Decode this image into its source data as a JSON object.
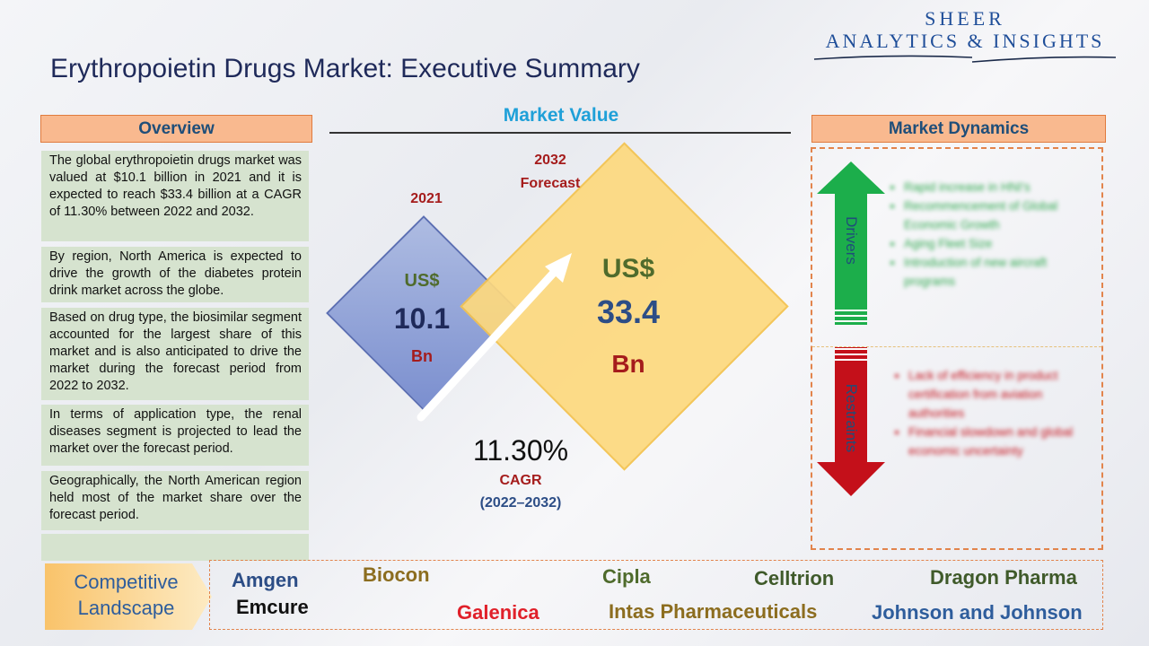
{
  "logo": {
    "line1": "SHEER",
    "line2": "ANALYTICS & INSIGHTS"
  },
  "title": "Erythropoietin Drugs Market: Executive Summary",
  "overview": {
    "header": "Overview",
    "items": [
      "The global erythropoietin drugs market was valued at $10.1 billion in 2021 and it is expected to reach $33.4 billion at a CAGR of 11.30% between 2022 and 2032.",
      "By region, North America is expected to drive the growth of the diabetes protein drink market across the globe.",
      "Based on drug type, the biosimilar segment accounted for the largest share of this market and is also anticipated to drive the market during the forecast period from 2022 to 2032.",
      "In terms of application type, the renal diseases segment is projected to lead the market over the forecast period.",
      "Geographically, the North American region held most of the market share over the forecast period.",
      ""
    ]
  },
  "market_value": {
    "header": "Market Value",
    "year_2021": "2021",
    "value_2021": {
      "currency": "US$",
      "amount": "10.1",
      "unit": "Bn"
    },
    "year_2032": "2032",
    "forecast_label": "Forecast",
    "value_2032": {
      "currency": "US$",
      "amount": "33.4",
      "unit": "Bn"
    },
    "cagr_value": "11.30%",
    "cagr_label": "CAGR",
    "cagr_period": "(2022–2032)"
  },
  "market_dynamics": {
    "header": "Market Dynamics",
    "drivers_label": "Drivers",
    "drivers": [
      "Rapid increase in HNI's",
      "Recommencement of Global Economic Growth",
      "Aging Fleet Size",
      "Introduction of new aircraft programs"
    ],
    "restraints_label": "Restraints",
    "restraints": [
      "Lack of efficiency in product certification from aviation authorities",
      "Financial slowdown and global economic uncertainty"
    ]
  },
  "competitive_landscape": {
    "label_line1": "Competitive",
    "label_line2": "Landscape",
    "companies": [
      {
        "name": "Amgen",
        "color": "#2c4d86"
      },
      {
        "name": "Emcure",
        "color": "#111111"
      },
      {
        "name": "Biocon",
        "color": "#8c6d1f"
      },
      {
        "name": "Galenica",
        "color": "#e0202a"
      },
      {
        "name": "Cipla",
        "color": "#4f6b2c"
      },
      {
        "name": "Intas Pharmaceuticals",
        "color": "#8c6d1f"
      },
      {
        "name": "Celltrion",
        "color": "#3f5a2a"
      },
      {
        "name": "Dragon Pharma",
        "color": "#3f5a2a"
      },
      {
        "name": "Johnson and Johnson",
        "color": "#2e5d9c"
      }
    ]
  },
  "colors": {
    "header_fill": "#f9b98f",
    "overview_fill": "#d6e3cf",
    "accent_blue": "#1fa0d8",
    "dark_red": "#a51c1c",
    "driver_green": "#1cae4b",
    "restraint_red": "#c4101a"
  }
}
